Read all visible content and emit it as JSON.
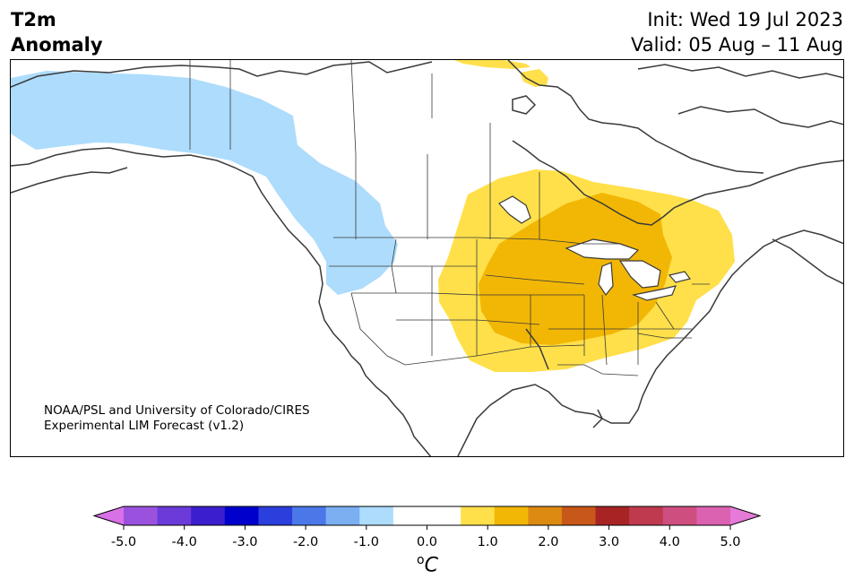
{
  "header": {
    "title_line1": "T2m",
    "title_line2": "Anomaly",
    "init": "Init: Wed 19 Jul 2023",
    "valid": "Valid: 05 Aug – 11 Aug"
  },
  "map": {
    "region": "North America",
    "credit_line1": "NOAA/PSL and University of Colorado/CIRES",
    "credit_line2": "Experimental LIM Forecast (v1.2)",
    "anomaly_areas": [
      {
        "name": "cool-anomaly-northwest",
        "level": "-1.0 to -0.5",
        "color": "#addcfc"
      },
      {
        "name": "warm-anomaly-central",
        "level": "0.5 to 1.0",
        "color": "#ffe04a"
      },
      {
        "name": "warm-anomaly-core",
        "level": "1.0 to 1.5",
        "color": "#f2b705"
      },
      {
        "name": "warm-anomaly-arctic",
        "level": "0.5 to 1.0",
        "color": "#ffe04a"
      }
    ]
  },
  "colorbar": {
    "colors": [
      "#d870e8",
      "#9a52de",
      "#6b3ad8",
      "#3b1fce",
      "#0000cc",
      "#2b3fdc",
      "#4a78e8",
      "#7aaff2",
      "#addcfc",
      "#ffffff",
      "#ffffff",
      "#ffe04a",
      "#f2b705",
      "#dd8a12",
      "#c75819",
      "#a82424",
      "#c03a4f",
      "#cf4e80",
      "#db62b0",
      "#e67ad8"
    ],
    "ticks": [
      "-5.0",
      "-4.0",
      "-3.0",
      "-2.0",
      "-1.0",
      "0.0",
      "1.0",
      "2.0",
      "3.0",
      "4.0",
      "5.0"
    ],
    "unit_base": "C",
    "unit_sup": "o"
  }
}
